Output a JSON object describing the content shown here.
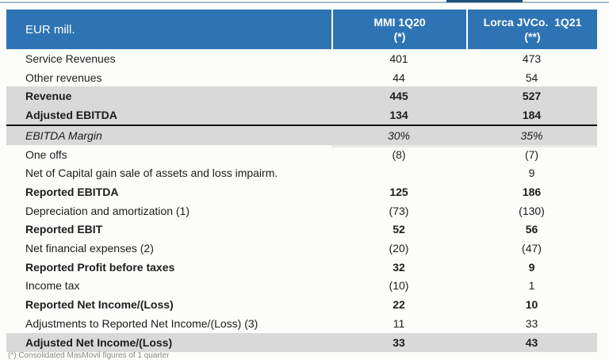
{
  "colors": {
    "header_bg": "#2E74B5",
    "header_text": "#FFFFFF",
    "band_gray": "#D9D9D9",
    "body_text": "#1C1C1C",
    "footnote_text": "#8A8A8A"
  },
  "table": {
    "unit_label": "EUR mill.",
    "columns": [
      {
        "line1": "MMI 1Q20",
        "line2": "(*)"
      },
      {
        "line1": "Lorca JVCo.  1Q21",
        "line2": "(**)"
      }
    ],
    "rows": [
      {
        "label": "Service Revenues",
        "mmi": "401",
        "lorca": "473"
      },
      {
        "label": "Other revenues",
        "mmi": "44",
        "lorca": "54"
      },
      {
        "label": "Revenue",
        "mmi": "445",
        "lorca": "527"
      },
      {
        "label": "Adjusted EBITDA",
        "mmi": "134",
        "lorca": "184"
      },
      {
        "label": "EBITDA Margin",
        "mmi": "30%",
        "lorca": "35%"
      },
      {
        "label": "One offs",
        "mmi": "(8)",
        "lorca": "(7)"
      },
      {
        "label": "Net of Capital gain sale of assets and loss impairm.",
        "mmi": "",
        "lorca": "9"
      },
      {
        "label": "Reported EBITDA",
        "mmi": "125",
        "lorca": "186"
      },
      {
        "label": "Depreciation and amortization (1)",
        "mmi": "(73)",
        "lorca": "(130)"
      },
      {
        "label": "Reported EBIT",
        "mmi": "52",
        "lorca": "56"
      },
      {
        "label": "Net financial expenses (2)",
        "mmi": "(20)",
        "lorca": "(47)"
      },
      {
        "label": "Reported Profit before taxes",
        "mmi": "32",
        "lorca": "9"
      },
      {
        "label": "Income tax",
        "mmi": "(10)",
        "lorca": "1"
      },
      {
        "label": "Reported Net Income/(Loss)",
        "mmi": "22",
        "lorca": "10"
      },
      {
        "label": "Adjustments to Reported Net Income/(Loss) (3)",
        "mmi": "11",
        "lorca": "33"
      },
      {
        "label": "Adjusted Net Income/(Loss)",
        "mmi": "33",
        "lorca": "43"
      }
    ],
    "footnote": "(*) Consolidated MasMovil figures of 1 quarter"
  }
}
